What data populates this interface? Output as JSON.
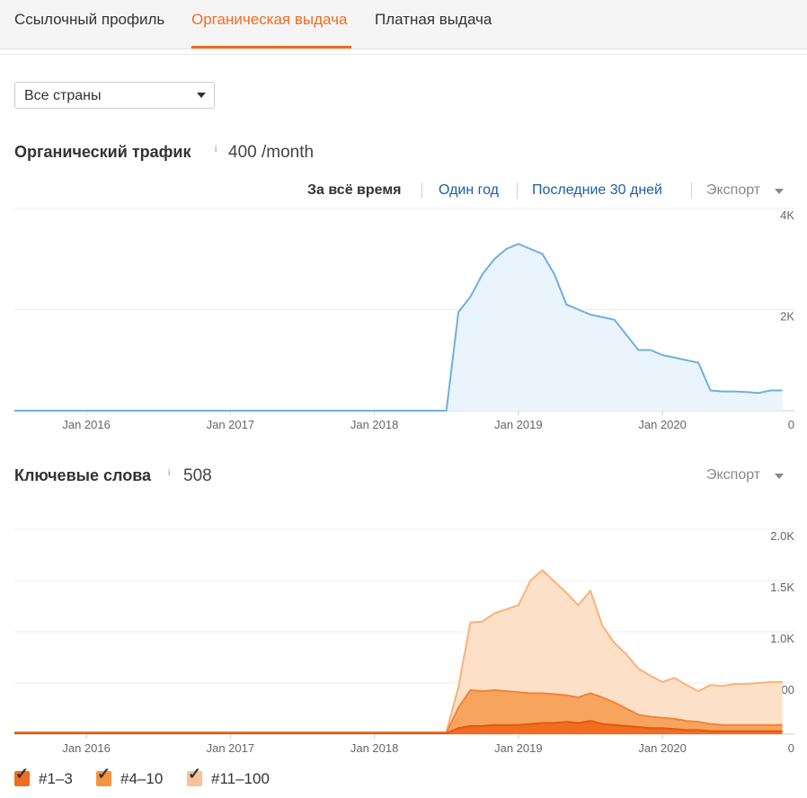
{
  "tabs": [
    {
      "label": "Ссылочный профиль",
      "active": false
    },
    {
      "label": "Органическая выдача",
      "active": true
    },
    {
      "label": "Платная выдача",
      "active": false
    }
  ],
  "country_select": {
    "value": "Все страны"
  },
  "traffic": {
    "title": "Органический трафик",
    "info": "i",
    "value": "400 /month",
    "ranges": [
      "За всё время",
      "Один год",
      "Последние 30 дней"
    ],
    "selected_range": "За всё время",
    "export_label": "Экспорт"
  },
  "keywords": {
    "title": "Ключевые слова",
    "info": "i",
    "value": "508",
    "export_label": "Экспорт"
  },
  "legend": [
    {
      "label": "#1–3",
      "checked": true,
      "color": "#f26c21"
    },
    {
      "label": "#4–10",
      "checked": true,
      "color": "#f5943f"
    },
    {
      "label": "#11–100",
      "checked": true,
      "color": "#f9c199"
    }
  ],
  "chart_data": [
    {
      "type": "area",
      "name": "Органический трафик",
      "x_ticks": [
        "Jan 2016",
        "Jan 2017",
        "Jan 2018",
        "Jan 2019",
        "Jan 2020"
      ],
      "y_ticks": [
        "4K",
        "2K",
        "0"
      ],
      "ylim": [
        0,
        4000
      ],
      "xlim": [
        "2015-07",
        "2020-12"
      ],
      "grid": true,
      "color": "#6fb0e0",
      "x": [
        "2015-07",
        "2018-07",
        "2018-08",
        "2018-09",
        "2018-10",
        "2018-11",
        "2018-12",
        "2019-01",
        "2019-02",
        "2019-03",
        "2019-04",
        "2019-05",
        "2019-06",
        "2019-07",
        "2019-08",
        "2019-09",
        "2019-10",
        "2019-11",
        "2019-12",
        "2020-01",
        "2020-02",
        "2020-03",
        "2020-04",
        "2020-05",
        "2020-06",
        "2020-07",
        "2020-08",
        "2020-09",
        "2020-10",
        "2020-11"
      ],
      "values": [
        0,
        0,
        1950,
        2250,
        2700,
        3000,
        3200,
        3300,
        3200,
        3100,
        2700,
        2100,
        2000,
        1900,
        1850,
        1800,
        1500,
        1200,
        1200,
        1100,
        1050,
        1000,
        950,
        400,
        380,
        380,
        370,
        350,
        400,
        400
      ]
    },
    {
      "type": "area",
      "name": "Ключевые слова",
      "x_ticks": [
        "Jan 2016",
        "Jan 2017",
        "Jan 2018",
        "Jan 2019",
        "Jan 2020"
      ],
      "y_ticks": [
        "2.0K",
        "1.5K",
        "1.0K",
        "500",
        "0"
      ],
      "ylim": [
        0,
        2000
      ],
      "xlim": [
        "2015-07",
        "2020-12"
      ],
      "grid": true,
      "stacked": true,
      "x": [
        "2015-07",
        "2018-07",
        "2018-08",
        "2018-09",
        "2018-10",
        "2018-11",
        "2018-12",
        "2019-01",
        "2019-02",
        "2019-03",
        "2019-04",
        "2019-05",
        "2019-06",
        "2019-07",
        "2019-08",
        "2019-09",
        "2019-10",
        "2019-11",
        "2019-12",
        "2020-01",
        "2020-02",
        "2020-03",
        "2020-04",
        "2020-05",
        "2020-06",
        "2020-07",
        "2020-08",
        "2020-09",
        "2020-10",
        "2020-11"
      ],
      "series": [
        {
          "name": "#1–3",
          "values": [
            10,
            10,
            60,
            80,
            80,
            90,
            90,
            90,
            100,
            110,
            110,
            120,
            110,
            130,
            100,
            90,
            80,
            70,
            60,
            60,
            50,
            40,
            40,
            30,
            30,
            30,
            30,
            30,
            30,
            30
          ]
        },
        {
          "name": "#4–10",
          "values": [
            5,
            5,
            200,
            350,
            340,
            340,
            330,
            320,
            300,
            290,
            280,
            260,
            250,
            270,
            260,
            220,
            170,
            120,
            110,
            100,
            100,
            90,
            80,
            70,
            60,
            60,
            60,
            60,
            60,
            60
          ]
        },
        {
          "name": "#11–100",
          "values": [
            5,
            5,
            200,
            660,
            680,
            750,
            800,
            850,
            1100,
            1200,
            1100,
            1000,
            900,
            1000,
            700,
            580,
            530,
            450,
            400,
            350,
            400,
            350,
            300,
            380,
            380,
            400,
            400,
            410,
            420,
            420
          ]
        }
      ]
    }
  ]
}
